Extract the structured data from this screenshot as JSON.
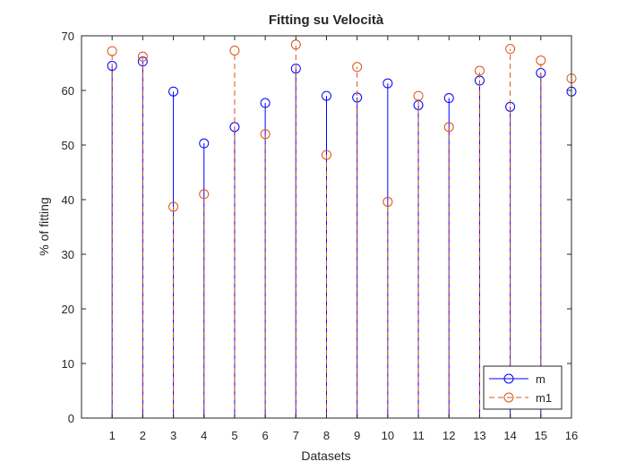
{
  "chart_data": {
    "type": "stem",
    "title": "Fitting su Velocità",
    "xlabel": "Datasets",
    "ylabel": "% of fitting",
    "xlim": [
      0,
      16
    ],
    "ylim": [
      0,
      70
    ],
    "x": [
      1,
      2,
      3,
      4,
      5,
      6,
      7,
      8,
      9,
      10,
      11,
      12,
      13,
      14,
      15,
      16
    ],
    "xticks": [
      1,
      2,
      3,
      4,
      5,
      6,
      7,
      8,
      9,
      10,
      11,
      12,
      13,
      14,
      15,
      16
    ],
    "yticks": [
      0,
      10,
      20,
      30,
      40,
      50,
      60,
      70
    ],
    "grid": false,
    "legend_position": "bottom-right",
    "series": [
      {
        "name": "m",
        "color": "#0000ff",
        "line_style": "solid",
        "marker": "circle",
        "values": [
          64.5,
          65.3,
          59.8,
          50.3,
          53.3,
          57.7,
          64.0,
          59.0,
          58.7,
          61.3,
          57.3,
          58.6,
          61.8,
          57.0,
          63.2,
          59.8
        ]
      },
      {
        "name": "m1",
        "color": "#d95319",
        "line_style": "dashed",
        "marker": "circle",
        "values": [
          67.2,
          66.2,
          38.7,
          41.0,
          67.3,
          52.0,
          68.4,
          48.2,
          64.3,
          39.6,
          59.0,
          53.3,
          63.6,
          67.6,
          65.5,
          62.2
        ]
      }
    ]
  }
}
